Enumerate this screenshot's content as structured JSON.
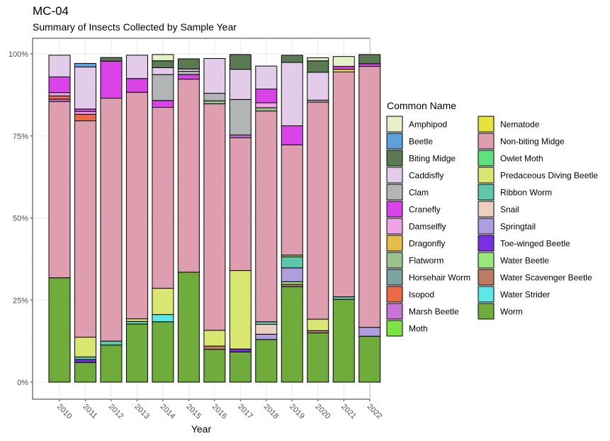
{
  "chart_data": {
    "type": "bar",
    "stacked": "percent",
    "title": "MC-04",
    "subtitle": "Summary of Insects Collected by Sample Year",
    "xlabel": "Year",
    "ylabel": "",
    "ylim": [
      0,
      1
    ],
    "yticks": [
      "0%",
      "25%",
      "50%",
      "75%",
      "100%"
    ],
    "categories": [
      "2010",
      "2011",
      "2012",
      "2013",
      "2014",
      "2015",
      "2016",
      "2017",
      "2018",
      "2019",
      "2020",
      "2021",
      "2022"
    ],
    "legend_title": "Common Name",
    "legend_position": "right",
    "series": [
      {
        "name": "Amphipod",
        "color": "#e6f0c8",
        "values": [
          0,
          0,
          0,
          0,
          0.019,
          0,
          0,
          0,
          0,
          0,
          0.009,
          0.03,
          0
        ]
      },
      {
        "name": "Beetle",
        "color": "#5da0dc",
        "values": [
          0,
          0.011,
          0,
          0,
          0,
          0,
          0,
          0,
          0,
          0,
          0,
          0,
          0
        ]
      },
      {
        "name": "Biting Midge",
        "color": "#5a7a54",
        "values": [
          0,
          0,
          0.011,
          0,
          0.021,
          0.031,
          0,
          0.045,
          0,
          0.022,
          0.035,
          0,
          0.028
        ]
      },
      {
        "name": "Caddisfly",
        "color": "#e2cce9",
        "values": [
          0.066,
          0.128,
          0,
          0.071,
          0.021,
          0.007,
          0.106,
          0.092,
          0.07,
          0.193,
          0.085,
          0,
          0
        ]
      },
      {
        "name": "Clam",
        "color": "#b1b5b5",
        "values": [
          0,
          0,
          0,
          0,
          0.079,
          0.01,
          0.023,
          0.108,
          0,
          0,
          0.006,
          0,
          0
        ]
      },
      {
        "name": "Cranefly",
        "color": "#d943e8",
        "values": [
          0.048,
          0.008,
          0.113,
          0.042,
          0.021,
          0.014,
          0,
          0,
          0.042,
          0.058,
          0,
          0.009,
          0.008
        ]
      },
      {
        "name": "Damselfly",
        "color": "#efa3e3",
        "values": [
          0.01,
          0.008,
          0,
          0,
          0,
          0,
          0,
          0,
          0.015,
          0,
          0,
          0,
          0
        ]
      },
      {
        "name": "Dragonfly",
        "color": "#e6bd4b",
        "values": [
          0,
          0,
          0,
          0,
          0,
          0,
          0,
          0,
          0,
          0,
          0,
          0,
          0
        ]
      },
      {
        "name": "Flatworm",
        "color": "#9bc28d",
        "values": [
          0,
          0,
          0,
          0,
          0,
          0,
          0.009,
          0,
          0.01,
          0,
          0,
          0,
          0
        ]
      },
      {
        "name": "Horsehair Worm",
        "color": "#7ca39f",
        "values": [
          0,
          0,
          0,
          0,
          0,
          0,
          0,
          0,
          0,
          0,
          0,
          0,
          0
        ]
      },
      {
        "name": "Isopod",
        "color": "#e86a46",
        "values": [
          0.01,
          0.02,
          0,
          0,
          0,
          0,
          0,
          0,
          0,
          0,
          0,
          0,
          0
        ]
      },
      {
        "name": "Marsh Beetle",
        "color": "#c874d8",
        "values": [
          0.007,
          0,
          0,
          0,
          0,
          0,
          0,
          0.008,
          0,
          0,
          0,
          0,
          0
        ]
      },
      {
        "name": "Moth",
        "color": "#7de344",
        "values": [
          0,
          0,
          0,
          0,
          0,
          0,
          0,
          0,
          0,
          0,
          0,
          0,
          0
        ]
      },
      {
        "name": "Nematode",
        "color": "#e4e43c",
        "values": [
          0,
          0,
          0,
          0,
          0,
          0,
          0,
          0,
          0,
          0,
          0,
          0.008,
          0
        ]
      },
      {
        "name": "Non-biting Midge",
        "color": "#df9eb0",
        "values": [
          0.537,
          0.659,
          0.74,
          0.69,
          0.551,
          0.588,
          0.69,
          0.405,
          0.642,
          0.336,
          0.661,
          0.685,
          0.795
        ]
      },
      {
        "name": "Owlet Moth",
        "color": "#5ee07a",
        "values": [
          0,
          0,
          0,
          0,
          0,
          0,
          0,
          0,
          0,
          0,
          0,
          0,
          0
        ]
      },
      {
        "name": "Predaceous Diving Beetle",
        "color": "#d9e771",
        "values": [
          0,
          0.06,
          0,
          0.008,
          0.08,
          0,
          0.048,
          0.239,
          0,
          0.005,
          0.035,
          0,
          0
        ]
      },
      {
        "name": "Ribbon Worm",
        "color": "#5ec7a7",
        "values": [
          0,
          0.008,
          0.012,
          0.008,
          0,
          0,
          0,
          0,
          0.008,
          0.034,
          0,
          0.008,
          0
        ]
      },
      {
        "name": "Snail",
        "color": "#eccfc0",
        "values": [
          0,
          0,
          0,
          0,
          0,
          0,
          0,
          0,
          0.03,
          0,
          0,
          0,
          0
        ]
      },
      {
        "name": "Springtail",
        "color": "#ae9ee0",
        "values": [
          0,
          0,
          0,
          0,
          0,
          0,
          0,
          0,
          0.016,
          0.042,
          0,
          0,
          0.027
        ]
      },
      {
        "name": "Toe-winged Beetle",
        "color": "#7930e1",
        "values": [
          0,
          0.009,
          0,
          0,
          0,
          0,
          0,
          0.009,
          0,
          0,
          0,
          0,
          0
        ]
      },
      {
        "name": "Water Beetle",
        "color": "#99e879",
        "values": [
          0,
          0,
          0,
          0,
          0,
          0,
          0,
          0,
          0,
          0.008,
          0,
          0,
          0
        ]
      },
      {
        "name": "Water Scavenger Beetle",
        "color": "#bd7b64",
        "values": [
          0,
          0,
          0,
          0,
          0,
          0,
          0.01,
          0,
          0,
          0.007,
          0.007,
          0,
          0
        ]
      },
      {
        "name": "Water Strider",
        "color": "#5de6e6",
        "values": [
          0,
          0,
          0,
          0,
          0.022,
          0,
          0,
          0,
          0,
          0,
          0,
          0,
          0
        ]
      },
      {
        "name": "Worm",
        "color": "#6fac3c",
        "values": [
          0.318,
          0.06,
          0.113,
          0.177,
          0.184,
          0.335,
          0.1,
          0.092,
          0.13,
          0.291,
          0.15,
          0.252,
          0.14
        ]
      }
    ]
  }
}
